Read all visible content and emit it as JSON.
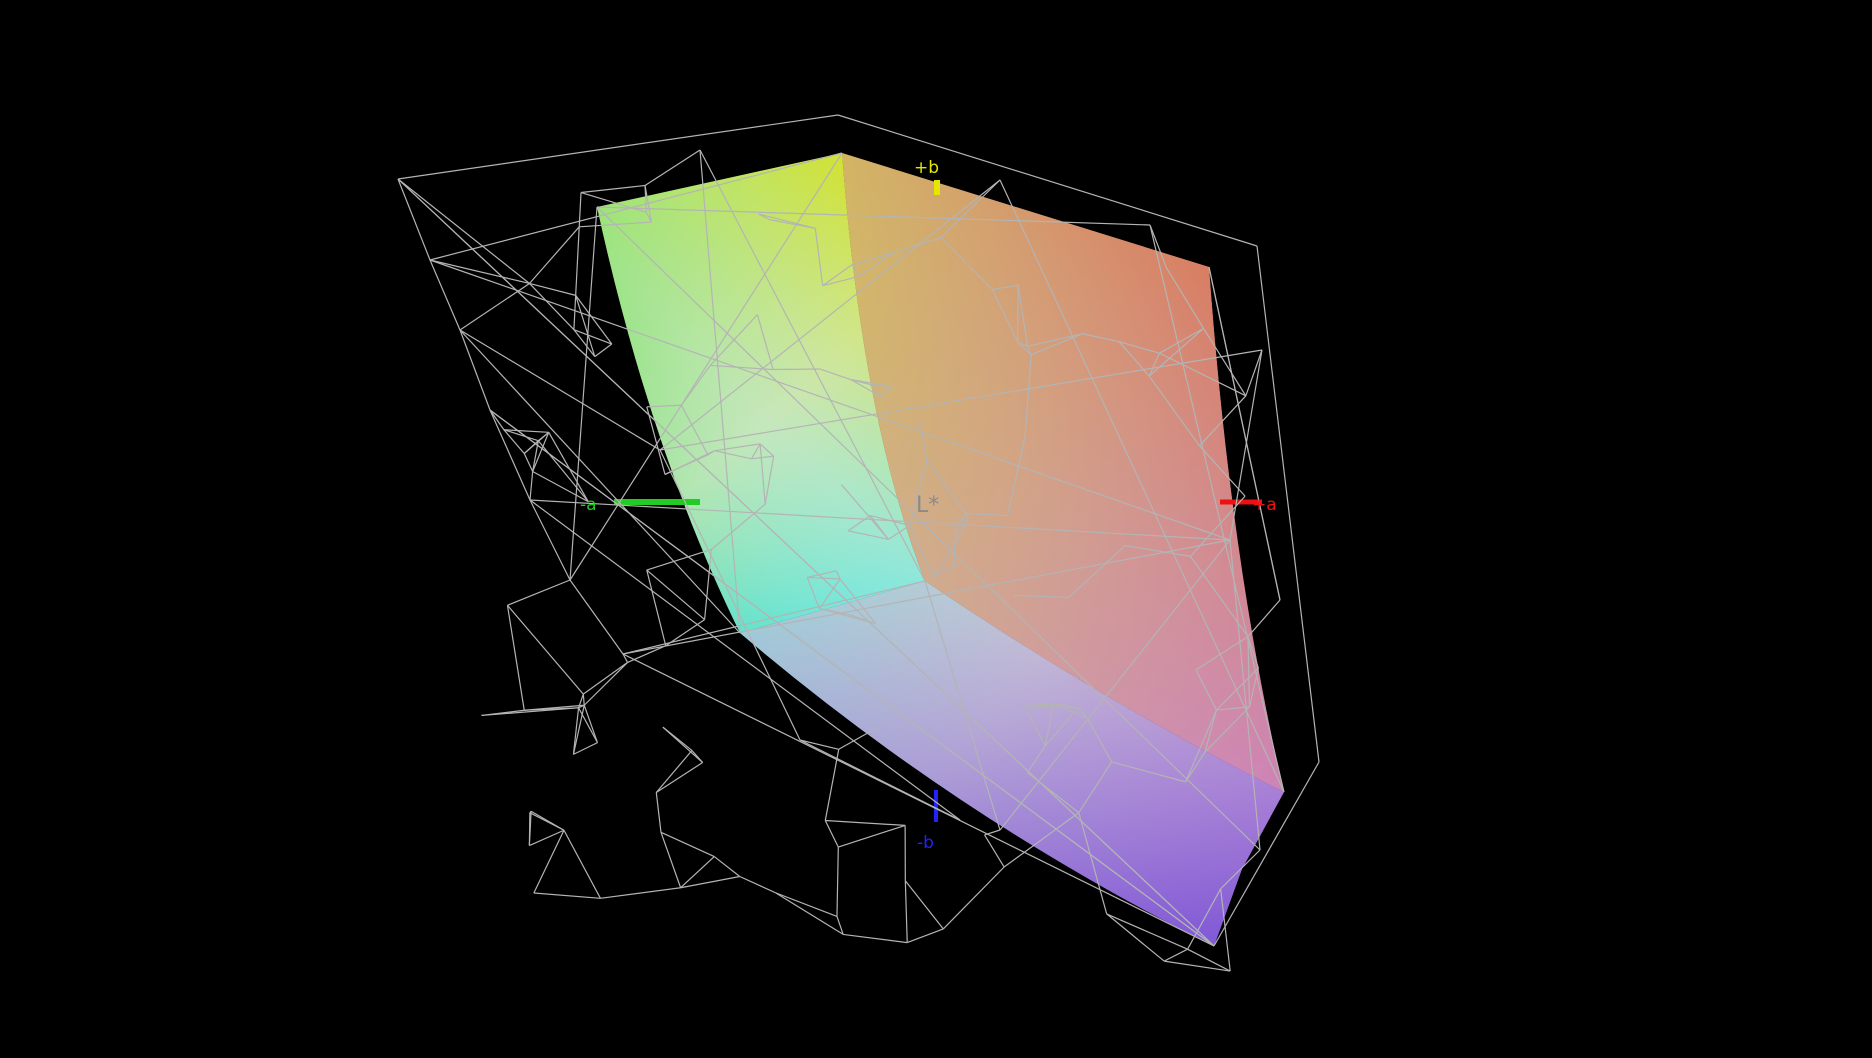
{
  "view": {
    "type": "3D Lab color gamut comparison",
    "background": "#000000",
    "wireframe_color": "#b4b4b4"
  },
  "axes": {
    "plus_b": {
      "label": "+b",
      "color": "#e6e600"
    },
    "minus_a": {
      "label": "-a",
      "color": "#22cc22"
    },
    "plus_a": {
      "label": "+a",
      "color": "#ee1111"
    },
    "minus_b": {
      "label": "-b",
      "color": "#2222ff"
    },
    "lightness": {
      "label": "L*",
      "color": "#8a8a8a"
    }
  },
  "gamut_colors": {
    "green": "#3ddc22",
    "yellow": "#dede00",
    "red": "#e05a3a",
    "magenta": "#cc44cc",
    "blue": "#8a4fd8",
    "cyan": "#33e0dd",
    "white": "#eeeeee"
  }
}
